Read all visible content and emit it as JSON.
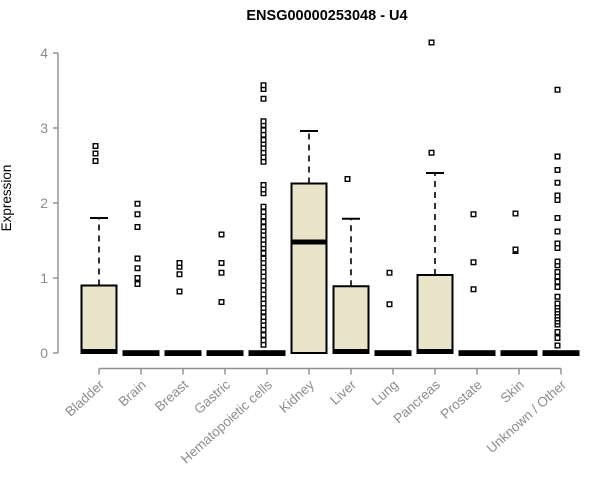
{
  "chart_data": {
    "type": "boxplot",
    "title": "ENSG00000253048 - U4",
    "ylabel": "Expression",
    "xlabel": "",
    "ylim": [
      0,
      4
    ],
    "yticks": [
      0,
      1,
      2,
      3,
      4
    ],
    "grid": false,
    "legend": "none",
    "categories": [
      "Bladder",
      "Brain",
      "Breast",
      "Gastric",
      "Hematopoietic cells",
      "Kidney",
      "Liver",
      "Lung",
      "Pancreas",
      "Prostate",
      "Skin",
      "Unknown / Other"
    ],
    "boxes": [
      {
        "category": "Bladder",
        "q1": 0,
        "median": 0.02,
        "q3": 0.9,
        "whisker_low": 0,
        "whisker_high": 1.8,
        "outliers": [
          2.56,
          2.66,
          2.76
        ]
      },
      {
        "category": "Brain",
        "q1": 0,
        "median": 0,
        "q3": 0,
        "whisker_low": 0,
        "whisker_high": 0,
        "outliers": [
          0.92,
          1.0,
          1.13,
          1.26,
          1.68,
          1.85,
          1.99
        ]
      },
      {
        "category": "Breast",
        "q1": 0,
        "median": 0,
        "q3": 0,
        "whisker_low": 0,
        "whisker_high": 0,
        "outliers": [
          0.82,
          1.05,
          1.15,
          1.2
        ]
      },
      {
        "category": "Gastric",
        "q1": 0,
        "median": 0,
        "q3": 0,
        "whisker_low": 0,
        "whisker_high": 0,
        "outliers": [
          0.68,
          1.07,
          1.2,
          1.58
        ]
      },
      {
        "category": "Hematopoietic cells",
        "q1": 0,
        "median": 0,
        "q3": 0,
        "whisker_low": 0,
        "whisker_high": 0,
        "outliers": [
          0.11,
          0.17,
          0.24,
          0.31,
          0.37,
          0.43,
          0.48,
          0.55,
          0.6,
          0.66,
          0.72,
          0.78,
          0.84,
          0.9,
          0.96,
          1.02,
          1.08,
          1.14,
          1.2,
          1.26,
          1.33,
          1.4,
          1.45,
          1.51,
          1.57,
          1.63,
          1.68,
          1.75,
          1.82,
          1.88,
          1.95,
          2.13,
          2.18,
          2.24,
          2.55,
          2.61,
          2.67,
          2.73,
          2.79,
          2.84,
          2.91,
          2.97,
          3.04,
          3.09,
          3.39,
          3.52,
          3.57
        ]
      },
      {
        "category": "Kidney",
        "q1": 0,
        "median": 1.48,
        "q3": 2.26,
        "whisker_low": 0,
        "whisker_high": 2.96,
        "outliers": []
      },
      {
        "category": "Liver",
        "q1": 0,
        "median": 0.02,
        "q3": 0.89,
        "whisker_low": 0,
        "whisker_high": 1.79,
        "outliers": [
          2.32
        ]
      },
      {
        "category": "Lung",
        "q1": 0,
        "median": 0,
        "q3": 0,
        "whisker_low": 0,
        "whisker_high": 0,
        "outliers": [
          0.65,
          1.07
        ]
      },
      {
        "category": "Pancreas",
        "q1": 0,
        "median": 0.02,
        "q3": 1.04,
        "whisker_low": 0,
        "whisker_high": 2.4,
        "outliers": [
          2.67,
          4.14
        ]
      },
      {
        "category": "Prostate",
        "q1": 0,
        "median": 0,
        "q3": 0,
        "whisker_low": 0,
        "whisker_high": 0,
        "outliers": [
          0.85,
          1.21,
          1.85
        ]
      },
      {
        "category": "Skin",
        "q1": 0,
        "median": 0,
        "q3": 0,
        "whisker_low": 0,
        "whisker_high": 0,
        "outliers": [
          1.36,
          1.38,
          1.86
        ]
      },
      {
        "category": "Unknown / Other",
        "q1": 0,
        "median": 0,
        "q3": 0,
        "whisker_low": 0,
        "whisker_high": 0,
        "outliers": [
          0.1,
          0.2,
          0.28,
          0.38,
          0.42,
          0.46,
          0.5,
          0.54,
          0.58,
          0.62,
          0.66,
          0.75,
          0.88,
          0.95,
          1.02,
          1.08,
          1.17,
          1.22,
          1.4,
          1.46,
          1.62,
          1.8,
          2.04,
          2.1,
          2.27,
          2.44,
          2.62,
          3.51
        ]
      }
    ],
    "colors": {
      "box_fill": "#E9E4C9",
      "box_stroke": "#000000",
      "median": "#000000",
      "outlier_stroke": "#000000",
      "outlier_fill": "#FFFFFF",
      "axis": "#8F8F8F",
      "tick_label": "#8C8C8C",
      "title": "#000000"
    }
  }
}
